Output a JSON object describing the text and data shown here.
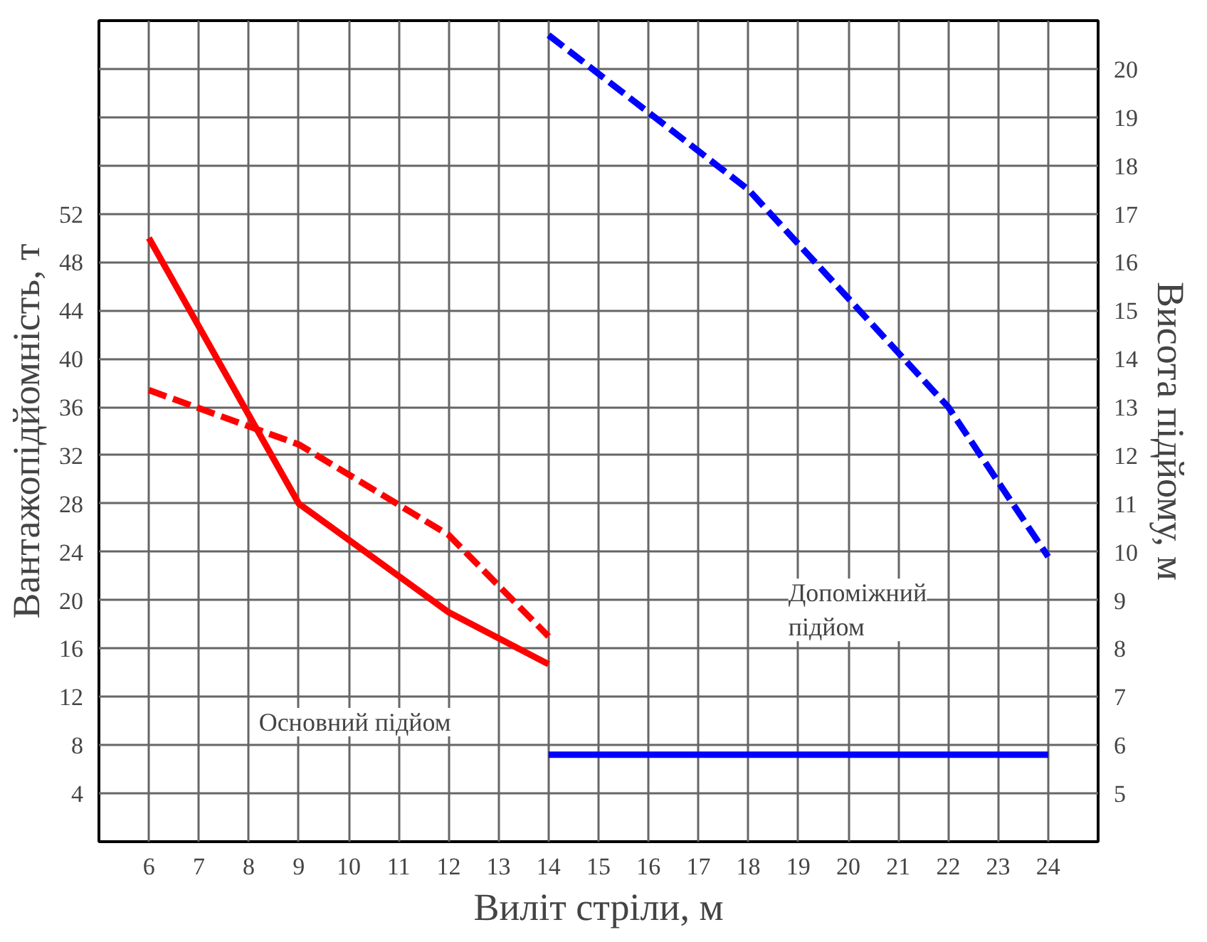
{
  "chart_data": {
    "type": "line",
    "xlabel": "Виліт стріли, м",
    "ylabel": "Вантажопідйомність, т",
    "y2label": "Висота підйому, м",
    "series": [
      {
        "color": "#ff0000",
        "x": [
          6,
          9,
          12,
          14
        ],
        "values": [
          50,
          28,
          19,
          14.7
        ],
        "line_style": "solid"
      },
      {
        "color": "#ff0000",
        "x": [
          6,
          9,
          12,
          14
        ],
        "values": [
          37.4,
          32.9,
          25.4,
          17
        ],
        "line_style": "dashed"
      },
      {
        "color": "#0000ff",
        "x": [
          14,
          18,
          22,
          24
        ],
        "values": [
          20.7,
          17.5,
          13,
          9.9
        ],
        "axis": "y2",
        "line_style": "dashed"
      },
      {
        "color": "#0000ff",
        "x": [
          14,
          24
        ],
        "values": [
          5.8,
          5.8
        ],
        "axis": "y2",
        "line_style": "solid"
      }
    ],
    "xlim": [
      5,
      25
    ],
    "xticks": [
      6,
      7,
      8,
      9,
      10,
      11,
      12,
      13,
      14,
      15,
      16,
      17,
      18,
      19,
      20,
      21,
      22,
      23,
      24
    ],
    "ylim": [
      0,
      68
    ],
    "yticks": [
      4,
      8,
      12,
      16,
      20,
      24,
      28,
      32,
      36,
      40,
      44,
      48,
      52
    ],
    "y2lim": [
      4,
      21
    ],
    "y2ticks": [
      5,
      6,
      7,
      8,
      9,
      10,
      11,
      12,
      13,
      14,
      15,
      16,
      17,
      18,
      19,
      20
    ],
    "grid": true,
    "marker": "none",
    "annotations": [
      "Основний підйом",
      "Допоміжний підйом"
    ]
  }
}
